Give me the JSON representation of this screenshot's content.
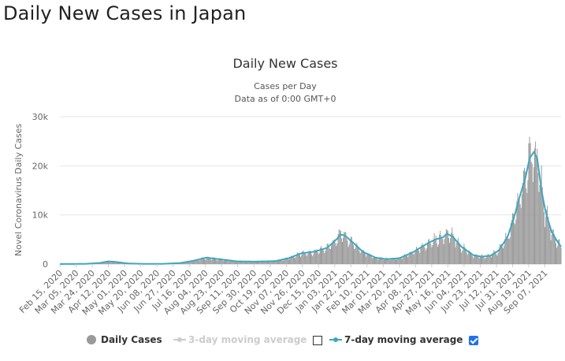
{
  "page": {
    "title": "Daily New Cases in Japan"
  },
  "chart_data": {
    "type": "bar",
    "title": "Daily New Cases",
    "subtitle_1": "Cases per Day",
    "subtitle_2": "Data as of 0:00 GMT+0",
    "ylabel": "Novel Coronavirus Daily Cases",
    "xlabel": "",
    "ylim": [
      0,
      30000
    ],
    "yticks": [
      0,
      10000,
      20000,
      30000
    ],
    "ytick_labels": [
      "0",
      "10k",
      "20k",
      "30k"
    ],
    "grid": true,
    "legend_position": "bottom",
    "x_start": "2020-02-15",
    "x_end": "2021-09-26",
    "xtick_labels": [
      "Feb 15, 2020",
      "Mar 05, 2020",
      "Mar 24, 2020",
      "Apr 12, 2020",
      "May 01, 2020",
      "May 20, 2020",
      "Jun 08, 2020",
      "Jun 27, 2020",
      "Jul 16, 2020",
      "Aug 04, 2020",
      "Aug 23, 2020",
      "Sep 11, 2020",
      "Sep 30, 2020",
      "Oct 19, 2020",
      "Nov 07, 2020",
      "Nov 26, 2020",
      "Dec 15, 2020",
      "Jan 03, 2021",
      "Jan 22, 2021",
      "Feb 10, 2021",
      "Mar 01, 2021",
      "Mar 20, 2021",
      "Apr 08, 2021",
      "Apr 27, 2021",
      "May 16, 2021",
      "Jun 04, 2021",
      "Jun 23, 2021",
      "Jul 12, 2021",
      "Jul 31, 2021",
      "Aug 19, 2021",
      "Sep 07, 2021"
    ],
    "trend_points": [
      {
        "date": "2020-02-15",
        "value": 5
      },
      {
        "date": "2020-03-15",
        "value": 40
      },
      {
        "date": "2020-04-01",
        "value": 200
      },
      {
        "date": "2020-04-12",
        "value": 550
      },
      {
        "date": "2020-04-20",
        "value": 450
      },
      {
        "date": "2020-05-05",
        "value": 120
      },
      {
        "date": "2020-05-25",
        "value": 30
      },
      {
        "date": "2020-06-15",
        "value": 50
      },
      {
        "date": "2020-07-05",
        "value": 200
      },
      {
        "date": "2020-07-20",
        "value": 650
      },
      {
        "date": "2020-08-05",
        "value": 1300
      },
      {
        "date": "2020-08-20",
        "value": 1000
      },
      {
        "date": "2020-09-10",
        "value": 550
      },
      {
        "date": "2020-10-01",
        "value": 500
      },
      {
        "date": "2020-10-25",
        "value": 600
      },
      {
        "date": "2020-11-10",
        "value": 1200
      },
      {
        "date": "2020-11-25",
        "value": 2200
      },
      {
        "date": "2020-12-10",
        "value": 2500
      },
      {
        "date": "2020-12-25",
        "value": 3300
      },
      {
        "date": "2021-01-05",
        "value": 5000
      },
      {
        "date": "2021-01-10",
        "value": 6000
      },
      {
        "date": "2021-01-15",
        "value": 5800
      },
      {
        "date": "2021-01-25",
        "value": 4300
      },
      {
        "date": "2021-02-05",
        "value": 2500
      },
      {
        "date": "2021-02-20",
        "value": 1300
      },
      {
        "date": "2021-03-05",
        "value": 1000
      },
      {
        "date": "2021-03-20",
        "value": 1200
      },
      {
        "date": "2021-04-05",
        "value": 2400
      },
      {
        "date": "2021-04-20",
        "value": 4000
      },
      {
        "date": "2021-05-01",
        "value": 5000
      },
      {
        "date": "2021-05-10",
        "value": 5400
      },
      {
        "date": "2021-05-15",
        "value": 6200
      },
      {
        "date": "2021-05-22",
        "value": 5500
      },
      {
        "date": "2021-06-01",
        "value": 3500
      },
      {
        "date": "2021-06-15",
        "value": 1800
      },
      {
        "date": "2021-06-25",
        "value": 1500
      },
      {
        "date": "2021-07-05",
        "value": 1700
      },
      {
        "date": "2021-07-15",
        "value": 2800
      },
      {
        "date": "2021-07-25",
        "value": 5500
      },
      {
        "date": "2021-08-01",
        "value": 9000
      },
      {
        "date": "2021-08-08",
        "value": 13500
      },
      {
        "date": "2021-08-15",
        "value": 17500
      },
      {
        "date": "2021-08-20",
        "value": 21500
      },
      {
        "date": "2021-08-25",
        "value": 22800
      },
      {
        "date": "2021-08-29",
        "value": 21500
      },
      {
        "date": "2021-09-03",
        "value": 15000
      },
      {
        "date": "2021-09-08",
        "value": 10500
      },
      {
        "date": "2021-09-15",
        "value": 6500
      },
      {
        "date": "2021-09-22",
        "value": 4500
      },
      {
        "date": "2021-09-26",
        "value": 3500
      }
    ],
    "bar_peak_value": 25900,
    "bar_peak_date": "2021-08-20",
    "series": [
      {
        "name": "Daily Cases",
        "color": "#999999"
      },
      {
        "name": "7-day moving average",
        "color": "#3fa7c0"
      }
    ]
  },
  "legend": {
    "daily_cases": "Daily Cases",
    "three_day": "3-day moving average",
    "seven_day": "7-day moving average",
    "three_day_checked": false,
    "seven_day_checked": true
  }
}
